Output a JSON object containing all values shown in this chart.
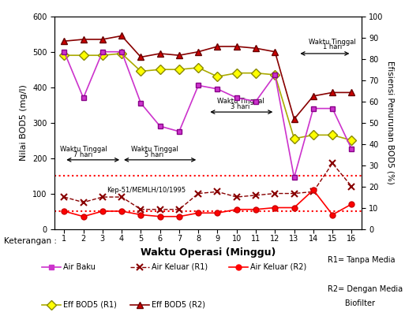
{
  "x": [
    1,
    2,
    3,
    4,
    5,
    6,
    7,
    8,
    9,
    10,
    11,
    12,
    13,
    14,
    15,
    16
  ],
  "air_baku": [
    500,
    370,
    500,
    500,
    355,
    290,
    275,
    405,
    395,
    370,
    360,
    435,
    145,
    340,
    340,
    225
  ],
  "air_keluar_r1": [
    90,
    75,
    90,
    90,
    55,
    55,
    55,
    100,
    105,
    90,
    95,
    100,
    100,
    105,
    185,
    120
  ],
  "air_keluar_r2": [
    50,
    35,
    50,
    50,
    40,
    35,
    35,
    45,
    45,
    55,
    55,
    60,
    60,
    110,
    40,
    70
  ],
  "eff_bod5_r1": [
    490,
    490,
    490,
    495,
    445,
    450,
    450,
    455,
    430,
    440,
    440,
    435,
    255,
    265,
    265,
    250
  ],
  "eff_bod5_r2": [
    530,
    535,
    535,
    545,
    485,
    495,
    490,
    500,
    515,
    515,
    510,
    500,
    310,
    375,
    385,
    385
  ],
  "kep_line_upper": 150,
  "kep_line_lower": 50,
  "air_baku_color": "#cc33cc",
  "air_keluar_r1_color": "#cc0000",
  "air_keluar_r2_color": "#ff0000",
  "eff_bod5_r1_color": "#cccc00",
  "eff_bod5_r2_color": "#990000",
  "kep_line_color": "#ff0000",
  "title_left": "Nilai BOD5 (mg/l)",
  "title_right": "Efisiensi Penurunan BOD5 (%)",
  "xlabel": "Waktu Operasi (Minggu)",
  "ylim": [
    0,
    600
  ],
  "xlim": [
    0.5,
    16.5
  ],
  "yticks": [
    0,
    100,
    200,
    300,
    400,
    500,
    600
  ],
  "xticks": [
    1,
    2,
    3,
    4,
    5,
    6,
    7,
    8,
    9,
    10,
    11,
    12,
    13,
    14,
    15,
    16
  ],
  "right_yticks": [
    0,
    10,
    20,
    30,
    40,
    50,
    60,
    70,
    80,
    90,
    100
  ],
  "kep_label": "Kep-51/MEMLH/10/1995",
  "legend_keterangan": "Keterangan :",
  "legend_r1": "R1= Tanpa Media",
  "legend_r2_line1": "R2= Dengan Media",
  "legend_r2_line2": "       Biofilter"
}
